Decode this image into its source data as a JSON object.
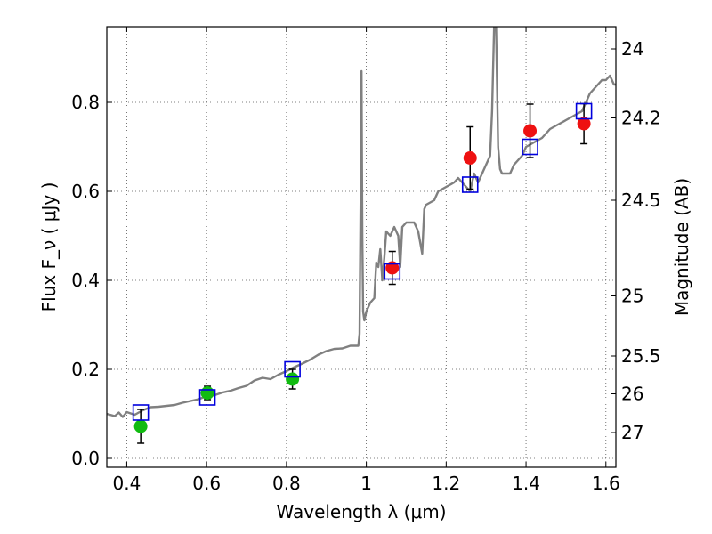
{
  "chart_data": {
    "type": "scatter",
    "xlabel": "Wavelength  λ (μm)",
    "ylabel": "Flux  F_ν  ( μJy )",
    "ylabel_right": "Magnitude (AB)",
    "xlim": [
      0.35,
      1.625
    ],
    "ylim": [
      -0.02,
      0.97
    ],
    "grid": true,
    "x_ticks": [
      0.4,
      0.6,
      0.8,
      1.0,
      1.2,
      1.4,
      1.6
    ],
    "x_tick_labels": [
      "0.4",
      "0.6",
      "0.8",
      "1",
      "1.2",
      "1.4",
      "1.6"
    ],
    "y_ticks": [
      0.0,
      0.2,
      0.4,
      0.6,
      0.8
    ],
    "y_tick_labels": [
      "0.0",
      "0.2",
      "0.4",
      "0.6",
      "0.8"
    ],
    "right_ticks": [
      {
        "label": "24",
        "flux": 0.92
      },
      {
        "label": "24.2",
        "flux": 0.765
      },
      {
        "label": "24.5",
        "flux": 0.58
      },
      {
        "label": "25",
        "flux": 0.365
      },
      {
        "label": "25.5",
        "flux": 0.23
      },
      {
        "label": "26",
        "flux": 0.145
      },
      {
        "label": "27",
        "flux": 0.058
      }
    ],
    "colors": {
      "spectrum": "#808080",
      "green_points": "#11bb11",
      "red_points": "#ee1111",
      "model_squares": "#0000dd",
      "error_bars": "#000000",
      "grid": "#555555"
    },
    "series": [
      {
        "points": [
          {
            "x": 0.435,
            "y": 0.072,
            "err": 0.038
          },
          {
            "x": 0.602,
            "y": 0.147,
            "err": 0.015
          },
          {
            "x": 0.815,
            "y": 0.178,
            "err": 0.022
          }
        ]
      },
      {
        "points": [
          {
            "x": 1.065,
            "y": 0.428,
            "err": 0.037
          },
          {
            "x": 1.26,
            "y": 0.675,
            "err": 0.07
          },
          {
            "x": 1.41,
            "y": 0.736,
            "err": 0.06
          },
          {
            "x": 1.545,
            "y": 0.752,
            "err": 0.045
          }
        ]
      },
      {
        "points": [
          {
            "x": 0.435,
            "y": 0.103
          },
          {
            "x": 0.602,
            "y": 0.137
          },
          {
            "x": 0.815,
            "y": 0.2
          },
          {
            "x": 1.065,
            "y": 0.42
          },
          {
            "x": 1.26,
            "y": 0.615
          },
          {
            "x": 1.41,
            "y": 0.7
          },
          {
            "x": 1.545,
            "y": 0.78
          }
        ]
      },
      {
        "line": [
          [
            0.35,
            0.1
          ],
          [
            0.37,
            0.095
          ],
          [
            0.38,
            0.103
          ],
          [
            0.39,
            0.093
          ],
          [
            0.4,
            0.104
          ],
          [
            0.42,
            0.098
          ],
          [
            0.44,
            0.108
          ],
          [
            0.46,
            0.115
          ],
          [
            0.48,
            0.116
          ],
          [
            0.5,
            0.118
          ],
          [
            0.52,
            0.12
          ],
          [
            0.54,
            0.125
          ],
          [
            0.56,
            0.129
          ],
          [
            0.58,
            0.133
          ],
          [
            0.6,
            0.14
          ],
          [
            0.62,
            0.142
          ],
          [
            0.64,
            0.148
          ],
          [
            0.66,
            0.152
          ],
          [
            0.68,
            0.158
          ],
          [
            0.7,
            0.163
          ],
          [
            0.72,
            0.175
          ],
          [
            0.74,
            0.181
          ],
          [
            0.76,
            0.178
          ],
          [
            0.78,
            0.188
          ],
          [
            0.8,
            0.196
          ],
          [
            0.82,
            0.205
          ],
          [
            0.84,
            0.213
          ],
          [
            0.86,
            0.222
          ],
          [
            0.88,
            0.233
          ],
          [
            0.9,
            0.241
          ],
          [
            0.92,
            0.246
          ],
          [
            0.94,
            0.247
          ],
          [
            0.96,
            0.253
          ],
          [
            0.98,
            0.253
          ],
          [
            0.983,
            0.28
          ],
          [
            0.986,
            0.6
          ],
          [
            0.988,
            0.87
          ],
          [
            0.99,
            0.5
          ],
          [
            0.992,
            0.33
          ],
          [
            0.995,
            0.31
          ],
          [
            1.0,
            0.33
          ],
          [
            1.01,
            0.35
          ],
          [
            1.02,
            0.36
          ],
          [
            1.025,
            0.44
          ],
          [
            1.03,
            0.43
          ],
          [
            1.035,
            0.47
          ],
          [
            1.04,
            0.4
          ],
          [
            1.045,
            0.45
          ],
          [
            1.05,
            0.51
          ],
          [
            1.06,
            0.5
          ],
          [
            1.07,
            0.52
          ],
          [
            1.08,
            0.5
          ],
          [
            1.085,
            0.43
          ],
          [
            1.09,
            0.52
          ],
          [
            1.1,
            0.53
          ],
          [
            1.12,
            0.53
          ],
          [
            1.13,
            0.51
          ],
          [
            1.14,
            0.46
          ],
          [
            1.145,
            0.56
          ],
          [
            1.15,
            0.57
          ],
          [
            1.17,
            0.58
          ],
          [
            1.18,
            0.6
          ],
          [
            1.2,
            0.61
          ],
          [
            1.22,
            0.62
          ],
          [
            1.23,
            0.63
          ],
          [
            1.24,
            0.62
          ],
          [
            1.26,
            0.6
          ],
          [
            1.27,
            0.64
          ],
          [
            1.28,
            0.62
          ],
          [
            1.29,
            0.64
          ],
          [
            1.3,
            0.66
          ],
          [
            1.31,
            0.68
          ],
          [
            1.315,
            0.78
          ],
          [
            1.32,
            0.97
          ],
          [
            1.325,
            0.97
          ],
          [
            1.33,
            0.7
          ],
          [
            1.335,
            0.65
          ],
          [
            1.34,
            0.64
          ],
          [
            1.36,
            0.64
          ],
          [
            1.37,
            0.66
          ],
          [
            1.38,
            0.67
          ],
          [
            1.39,
            0.68
          ],
          [
            1.4,
            0.7
          ],
          [
            1.42,
            0.71
          ],
          [
            1.44,
            0.72
          ],
          [
            1.46,
            0.74
          ],
          [
            1.48,
            0.75
          ],
          [
            1.5,
            0.76
          ],
          [
            1.52,
            0.77
          ],
          [
            1.54,
            0.78
          ],
          [
            1.55,
            0.8
          ],
          [
            1.56,
            0.82
          ],
          [
            1.57,
            0.83
          ],
          [
            1.58,
            0.84
          ],
          [
            1.59,
            0.85
          ],
          [
            1.6,
            0.85
          ],
          [
            1.61,
            0.86
          ],
          [
            1.62,
            0.84
          ],
          [
            1.625,
            0.84
          ]
        ]
      }
    ]
  }
}
